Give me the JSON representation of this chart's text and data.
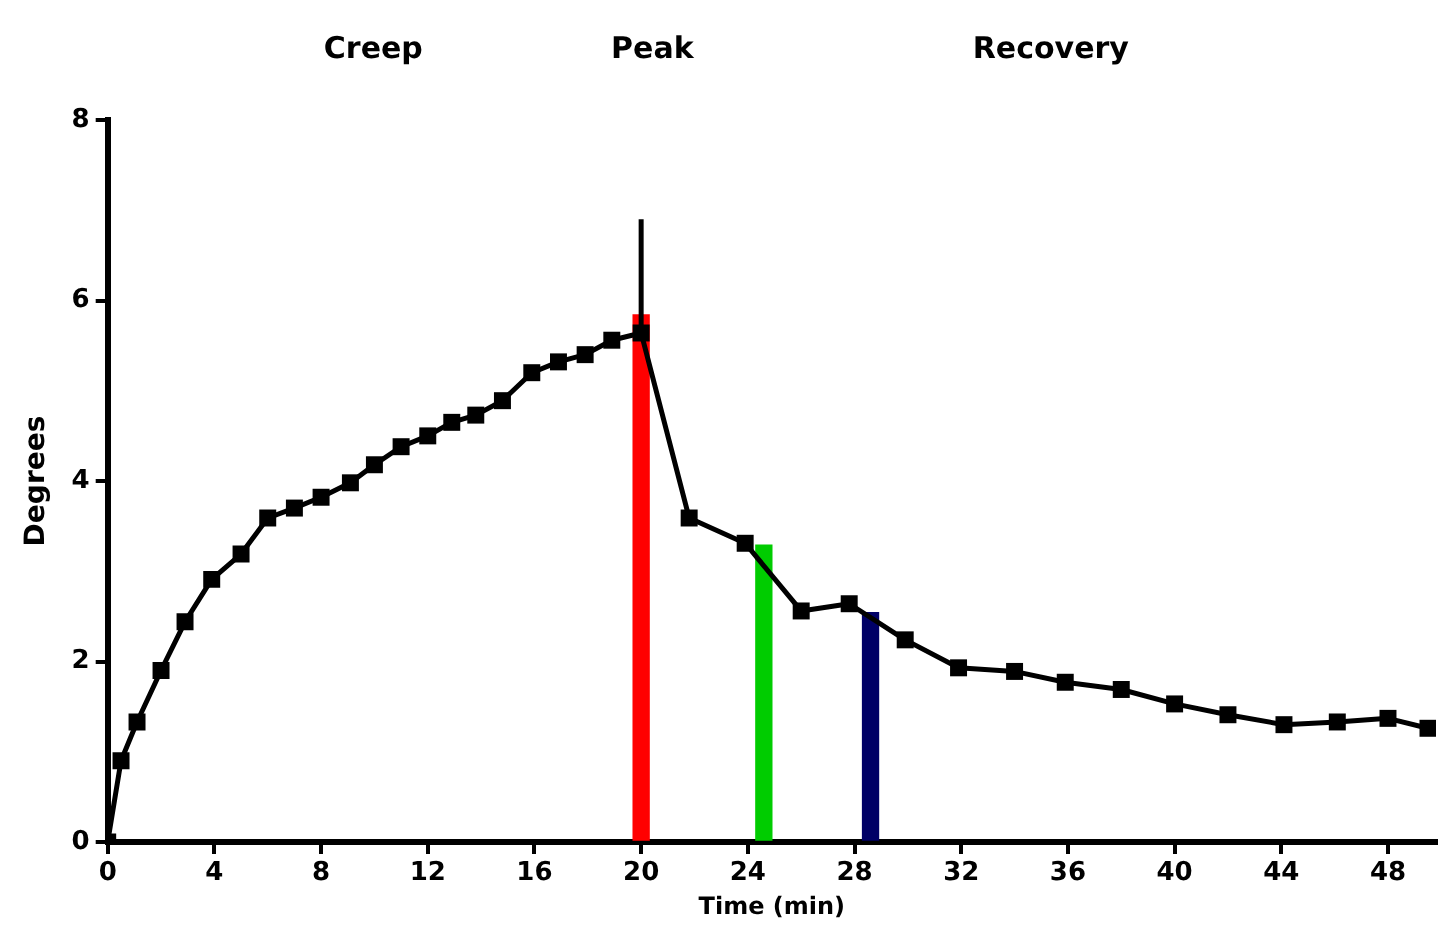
{
  "chart_data": {
    "type": "line",
    "xlabel": "Time (min)",
    "ylabel": "Degrees",
    "annotations": [
      "Creep",
      "Peak",
      "Recovery"
    ],
    "xlim": [
      0,
      49.8
    ],
    "xticks": [
      0,
      4,
      8,
      12,
      16,
      20,
      24,
      28,
      32,
      36,
      40,
      44,
      48
    ],
    "ylim": [
      0,
      8
    ],
    "yticks": [
      0,
      2,
      4,
      6,
      8
    ],
    "grid": false,
    "legend": false,
    "marker": "square",
    "line_style": "solid",
    "series": [
      {
        "color": "#000000",
        "x": [
          0,
          0.5,
          1.1,
          2,
          2.9,
          3.9,
          5,
          6,
          7,
          8,
          9.1,
          10,
          11,
          12,
          12.9,
          13.8,
          14.8,
          15.9,
          16.9,
          17.9,
          18.9,
          20,
          21.8,
          23.9,
          26,
          27.8,
          29.9,
          31.9,
          34,
          35.9,
          38,
          40,
          42,
          44.1,
          46.1,
          48,
          49.5
        ],
        "values": [
          0,
          0.9,
          1.33,
          1.9,
          2.44,
          2.91,
          3.19,
          3.59,
          3.7,
          3.82,
          3.98,
          4.18,
          4.38,
          4.5,
          4.65,
          4.73,
          4.89,
          5.2,
          5.32,
          5.4,
          5.56,
          5.64,
          3.59,
          3.31,
          2.56,
          2.64,
          2.24,
          1.93,
          1.89,
          1.77,
          1.69,
          1.53,
          1.41,
          1.3,
          1.33,
          1.37,
          1.26
        ]
      },
      {
        "color": "#000000",
        "marker": "none",
        "x": [
          20,
          20
        ],
        "values": [
          5.64,
          6.9
        ]
      },
      {
        "type": "bar",
        "x": [
          20,
          24.6,
          28.6
        ],
        "values": [
          5.84,
          3.29,
          2.54
        ],
        "colors": [
          "#ff0000",
          "#00cc00",
          "#000066"
        ]
      }
    ]
  }
}
